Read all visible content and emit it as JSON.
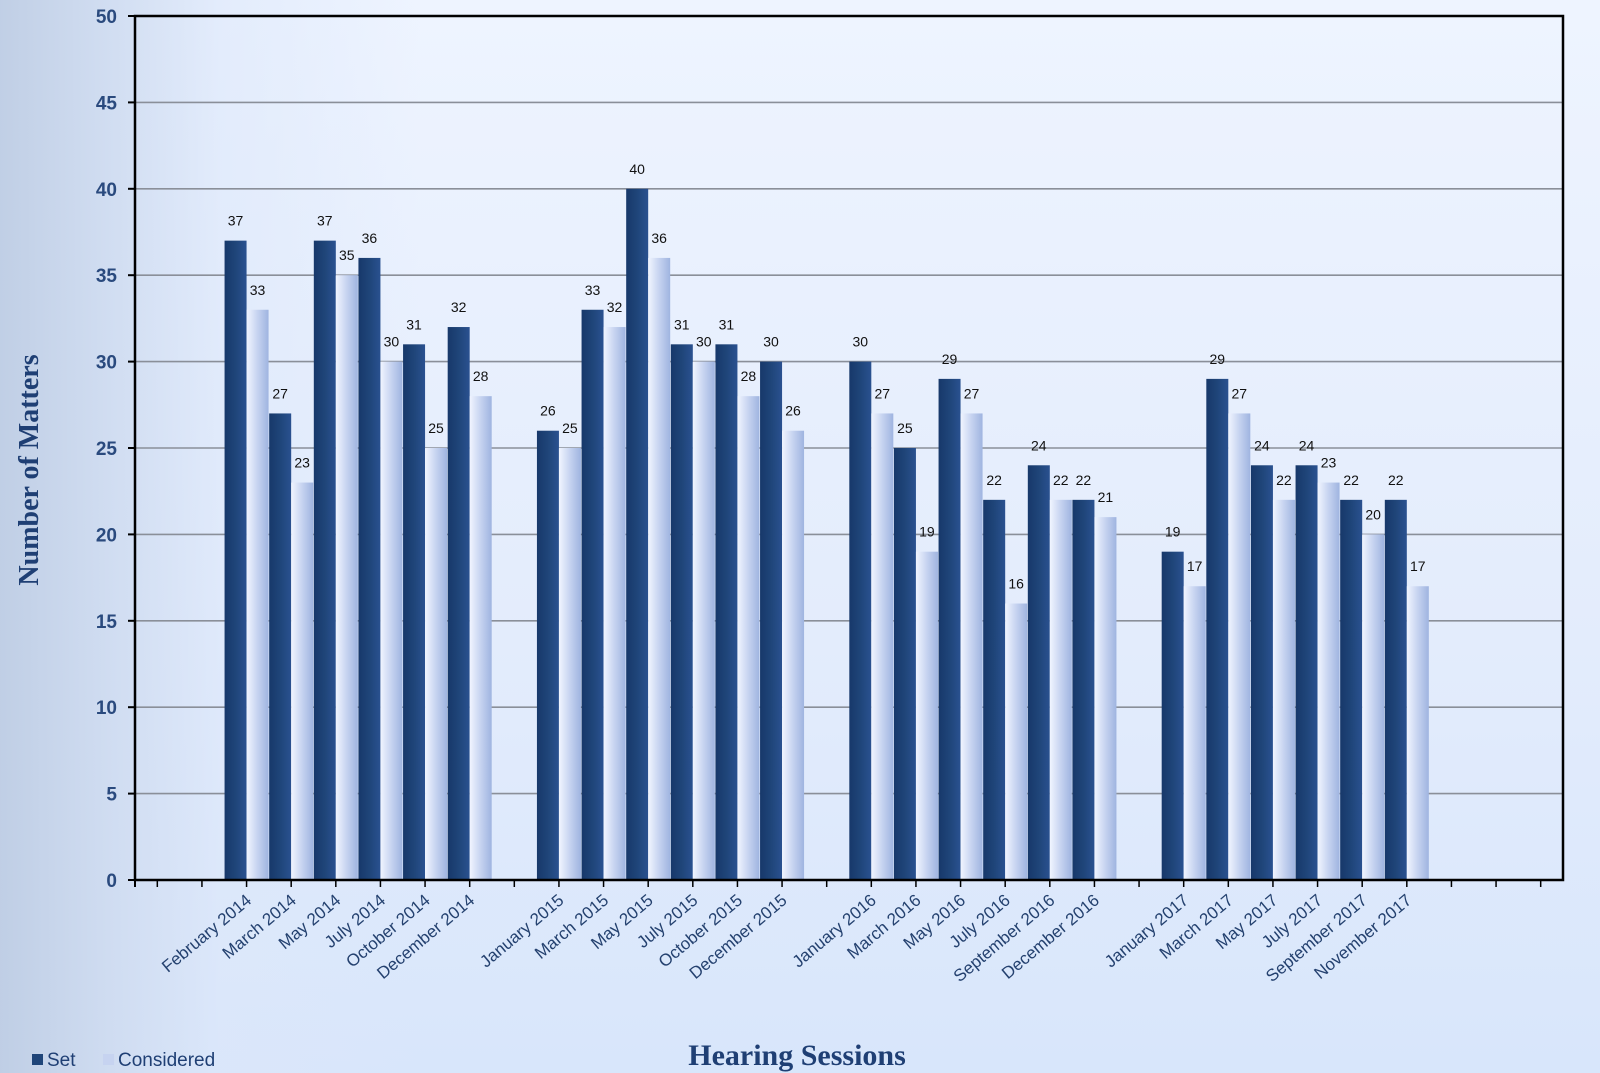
{
  "chart_data": {
    "type": "bar",
    "xlabel": "Hearing Sessions",
    "ylabel": "Number of Matters",
    "ylim": [
      0,
      50
    ],
    "yticks": [
      0,
      5,
      10,
      15,
      20,
      25,
      30,
      35,
      40,
      45,
      50
    ],
    "grid": true,
    "legend_position": "bottom-left",
    "colors": {
      "Set": "#1f4579",
      "Considered": "#c6d3f0"
    },
    "categories": [
      "February 2014",
      "March 2014",
      "May 2014",
      "July 2014",
      "October 2014",
      "December 2014",
      "",
      "January 2015",
      "March 2015",
      "May 2015",
      "July 2015",
      "October 2015",
      "December 2015",
      "",
      "January 2016",
      "March 2016",
      "May 2016",
      "July 2016",
      "September 2016",
      "December 2016",
      "",
      "January 2017",
      "March 2017",
      "May 2017",
      "July 2017",
      "September 2017",
      "November 2017"
    ],
    "series": [
      {
        "name": "Set",
        "values": [
          37,
          27,
          37,
          36,
          31,
          32,
          null,
          26,
          33,
          40,
          31,
          31,
          30,
          null,
          30,
          25,
          29,
          22,
          24,
          22,
          null,
          19,
          29,
          24,
          24,
          22,
          22
        ]
      },
      {
        "name": "Considered",
        "values": [
          33,
          23,
          35,
          30,
          25,
          28,
          null,
          25,
          32,
          36,
          30,
          28,
          26,
          null,
          27,
          19,
          27,
          16,
          22,
          21,
          null,
          17,
          27,
          22,
          23,
          20,
          17
        ]
      }
    ]
  }
}
